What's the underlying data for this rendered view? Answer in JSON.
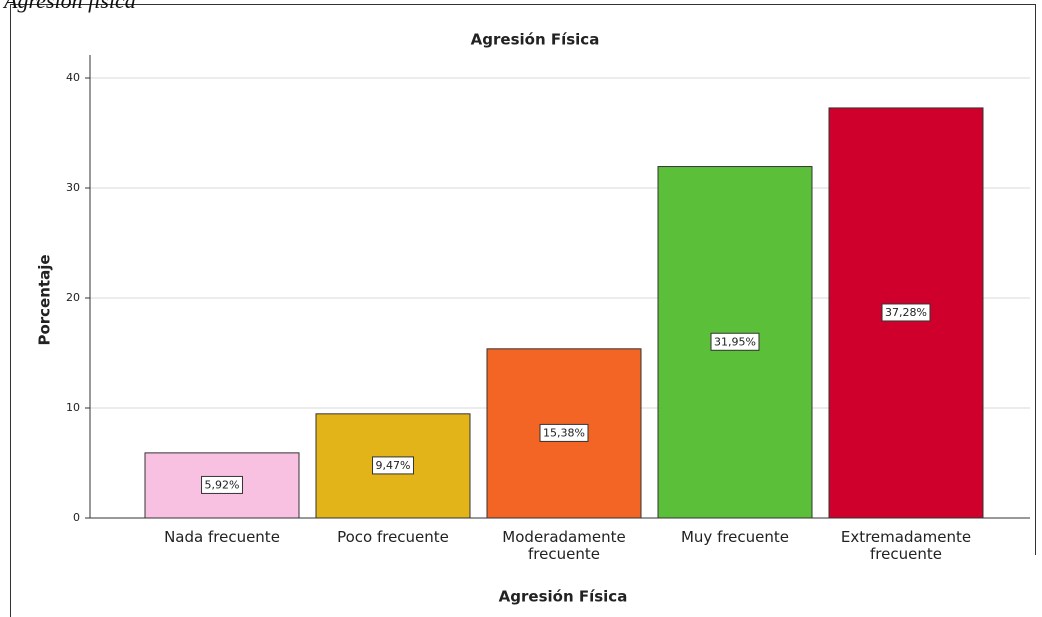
{
  "caption": "Agresión física",
  "chart_data": {
    "type": "bar",
    "title": "Agresión Física",
    "x_label": "Agresión Física",
    "y_label": "Porcentaje",
    "categories": [
      "Nada frecuente",
      "Poco frecuente",
      "Moderadamente frecuente",
      "Muy frecuente",
      "Extremadamente frecuente"
    ],
    "values": [
      5.92,
      9.47,
      15.38,
      31.95,
      37.28
    ],
    "value_labels": [
      "5,92%",
      "9,47%",
      "15,38%",
      "31,95%",
      "37,28%"
    ],
    "colors": [
      "#f9c1e1",
      "#e2b41a",
      "#f26524",
      "#5cbf3a",
      "#cf002c"
    ],
    "ylim": [
      0,
      40
    ],
    "yticks": [
      0,
      10,
      20,
      30,
      40
    ],
    "grid": true
  }
}
